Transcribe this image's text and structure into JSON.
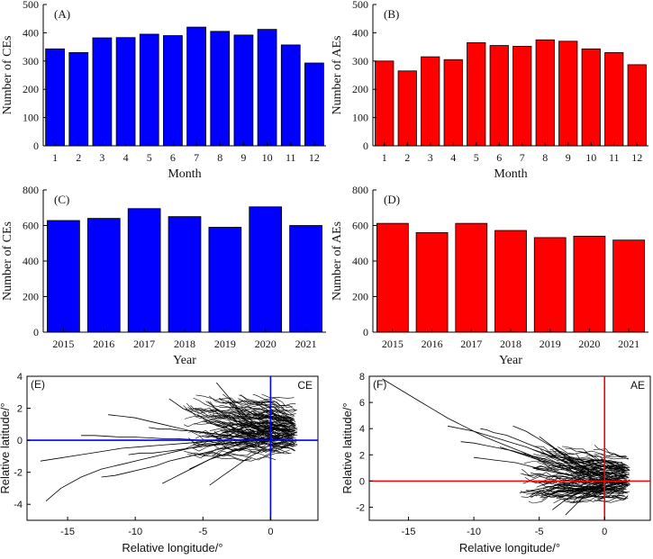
{
  "chart_data": [
    {
      "id": "A",
      "panel_label": "(A)",
      "type": "bar",
      "font": "serif",
      "categories": [
        "1",
        "2",
        "3",
        "4",
        "5",
        "6",
        "7",
        "8",
        "9",
        "10",
        "11",
        "12"
      ],
      "values": [
        343,
        330,
        382,
        383,
        395,
        390,
        420,
        405,
        392,
        412,
        357,
        293
      ],
      "xlabel": "Month",
      "ylabel": "Number of CEs",
      "ylim": [
        0,
        500
      ],
      "yticks": [
        0,
        100,
        200,
        300,
        400,
        500
      ],
      "color": "#0000ff"
    },
    {
      "id": "B",
      "panel_label": "(B)",
      "type": "bar",
      "font": "serif",
      "categories": [
        "1",
        "2",
        "3",
        "4",
        "5",
        "6",
        "7",
        "8",
        "9",
        "10",
        "11",
        "12"
      ],
      "values": [
        300,
        265,
        315,
        305,
        365,
        355,
        352,
        375,
        370,
        343,
        330,
        287
      ],
      "xlabel": "Month",
      "ylabel": "Number of AEs",
      "ylim": [
        0,
        500
      ],
      "yticks": [
        0,
        100,
        200,
        300,
        400,
        500
      ],
      "color": "#ff0000"
    },
    {
      "id": "C",
      "panel_label": "(C)",
      "type": "bar",
      "font": "serif",
      "categories": [
        "2015",
        "2016",
        "2017",
        "2018",
        "2019",
        "2020",
        "2021"
      ],
      "values": [
        628,
        640,
        695,
        650,
        590,
        705,
        600
      ],
      "xlabel": "Year",
      "ylabel": "Number of CEs",
      "ylim": [
        0,
        800
      ],
      "yticks": [
        0,
        200,
        400,
        600,
        800
      ],
      "color": "#0000ff"
    },
    {
      "id": "D",
      "panel_label": "(D)",
      "type": "bar",
      "font": "serif",
      "categories": [
        "2015",
        "2016",
        "2017",
        "2018",
        "2019",
        "2020",
        "2021"
      ],
      "values": [
        612,
        560,
        612,
        572,
        532,
        540,
        518
      ],
      "xlabel": "Year",
      "ylabel": "Number of AEs",
      "ylim": [
        0,
        800
      ],
      "yticks": [
        0,
        200,
        400,
        600,
        800
      ],
      "color": "#ff0000"
    },
    {
      "id": "E",
      "panel_label": "(E)",
      "type": "line",
      "font": "sans",
      "corner_label": "CE",
      "xlabel": "Relative longitude/°",
      "ylabel": "Relative latitude/°",
      "xlim": [
        -18,
        3.5
      ],
      "ylim": [
        -5,
        4
      ],
      "xticks": [
        -15,
        -10,
        -5,
        0
      ],
      "yticks": [
        -4,
        -2,
        0,
        2,
        4
      ],
      "reference_lines": {
        "x": 0,
        "y": 0,
        "color": "#0000ff"
      },
      "series_color": "#000000",
      "series": [
        {
          "x": [
            -16.6,
            -15.5,
            -14,
            -12.5,
            -11,
            -9.5,
            -8,
            -6.5,
            -5,
            -3.5,
            -2,
            -1,
            0
          ],
          "y": [
            -3.8,
            -3.0,
            -2.3,
            -1.8,
            -1.5,
            -1.2,
            -0.9,
            -0.6,
            -0.3,
            -0.2,
            -0.1,
            0,
            0
          ]
        },
        {
          "x": [
            -17,
            -15.5,
            -14,
            -12.5,
            -11,
            -9.5,
            -8,
            -6.5,
            -5,
            -3.5,
            -2,
            -0.5
          ],
          "y": [
            -1.3,
            -1.1,
            -0.9,
            -0.7,
            -0.5,
            -0.4,
            -0.3,
            -0.2,
            -0.1,
            0,
            0.05,
            0.1
          ]
        },
        {
          "x": [
            -12,
            -11,
            -10,
            -9,
            -8,
            -7,
            -6,
            -5,
            -4,
            -3,
            -2,
            -1,
            0
          ],
          "y": [
            1.6,
            1.5,
            1.4,
            1.2,
            1.0,
            0.8,
            0.6,
            0.5,
            0.4,
            0.3,
            0.2,
            0.1,
            0.1
          ]
        },
        {
          "x": [
            -12.5,
            -11.5,
            -10.5,
            -9.5,
            -8.5,
            -7.5,
            -6.5,
            -5.5,
            -4.5,
            -3.5,
            -2.5,
            -1.5
          ],
          "y": [
            -2.3,
            -2.2,
            -2.0,
            -1.8,
            -1.6,
            -1.3,
            -1.1,
            -0.9,
            -0.7,
            -0.5,
            -0.3,
            -0.2
          ]
        },
        {
          "x": [
            -14,
            -13,
            -12,
            -11,
            -10,
            -9,
            -8,
            -7,
            -6,
            -5,
            -4,
            -3,
            -2,
            -1
          ],
          "y": [
            0.3,
            0.3,
            0.25,
            0.2,
            0.2,
            0.15,
            0.1,
            0.1,
            0.05,
            0,
            0,
            0,
            0,
            0
          ]
        },
        {
          "x": [
            -4,
            -3.6,
            -3.2,
            -2.8,
            -2.4,
            -2,
            -1.6,
            -1.2,
            -0.8,
            -0.4,
            0,
            0.4
          ],
          "y": [
            3.6,
            3.2,
            2.8,
            2.4,
            2.0,
            1.7,
            1.4,
            1.0,
            0.7,
            0.5,
            0.3,
            0.2
          ]
        },
        {
          "x": [
            -7.5,
            -7,
            -6.5,
            -6,
            -5.5,
            -5,
            -4.5,
            -4,
            -3.5,
            -3,
            -2.5,
            -2,
            -1.5,
            -1,
            -0.5
          ],
          "y": [
            2.6,
            2.3,
            2.0,
            1.8,
            1.6,
            1.4,
            1.2,
            1.0,
            0.9,
            0.7,
            0.5,
            0.4,
            0.3,
            0.2,
            0.1
          ]
        },
        {
          "x": [
            -8,
            -7.3,
            -6.6,
            -5.9,
            -5.2,
            -4.5,
            -3.8,
            -3.1,
            -2.4,
            -1.7,
            -1,
            -0.3
          ],
          "y": [
            -2.7,
            -2.4,
            -2.1,
            -1.8,
            -1.5,
            -1.2,
            -1.0,
            -0.8,
            -0.6,
            -0.4,
            -0.3,
            -0.2
          ]
        },
        {
          "x": [
            -9,
            -8.2,
            -7.4,
            -6.6,
            -5.8,
            -5,
            -4.2,
            -3.4,
            -2.6,
            -1.8,
            -1,
            -0.2
          ],
          "y": [
            0.8,
            0.7,
            0.7,
            0.6,
            0.6,
            0.5,
            0.4,
            0.3,
            0.2,
            0.1,
            0.05,
            0
          ]
        },
        {
          "x": [
            -6,
            -5.5,
            -5,
            -4.5,
            -4,
            -3.5,
            -3,
            -2.5,
            -2,
            -1.5,
            -1,
            -0.5,
            0,
            0.5
          ],
          "y": [
            -1.8,
            -1.6,
            -1.4,
            -1.2,
            -1.0,
            -0.9,
            -0.7,
            -0.6,
            -0.4,
            -0.3,
            -0.2,
            -0.1,
            0,
            0
          ]
        },
        {
          "x": [
            -3,
            -2.7,
            -2.4,
            -2.1,
            -1.8,
            -1.5,
            -1.2,
            -0.9,
            -0.6,
            -0.3,
            0,
            0.3,
            0.6
          ],
          "y": [
            2.4,
            2.1,
            1.8,
            1.6,
            1.3,
            1.1,
            0.9,
            0.7,
            0.5,
            0.3,
            0.2,
            0.1,
            0
          ]
        },
        {
          "x": [
            -10.5,
            -9.6,
            -8.7,
            -7.8,
            -6.9,
            -6,
            -5.1,
            -4.2,
            -3.3,
            -2.4,
            -1.5,
            -0.6
          ],
          "y": [
            -0.9,
            -0.8,
            -0.8,
            -0.7,
            -0.6,
            -0.5,
            -0.4,
            -0.3,
            -0.2,
            -0.1,
            -0.05,
            0
          ]
        },
        {
          "x": [
            -5,
            -4.6,
            -4.2,
            -3.8,
            -3.4,
            -3,
            -2.6,
            -2.2,
            -1.8,
            -1.4,
            -1,
            -0.6,
            -0.2,
            0.2
          ],
          "y": [
            1.2,
            1.1,
            1.0,
            0.9,
            0.8,
            0.7,
            0.6,
            0.5,
            0.4,
            0.3,
            0.2,
            0.1,
            0.05,
            0
          ]
        },
        {
          "x": [
            -4.5,
            -4,
            -3.5,
            -3,
            -2.5,
            -2,
            -1.5,
            -1,
            -0.5,
            0,
            0.5,
            1
          ],
          "y": [
            -2.8,
            -2.5,
            -2.2,
            -1.9,
            -1.6,
            -1.3,
            -1.0,
            -0.8,
            -0.5,
            -0.3,
            -0.2,
            -0.1
          ]
        }
      ]
    },
    {
      "id": "F",
      "panel_label": "(F)",
      "type": "line",
      "font": "sans",
      "corner_label": "AE",
      "xlabel": "Relative longitude/°",
      "ylabel": "Relative latitude/°",
      "xlim": [
        -18,
        3.5
      ],
      "ylim": [
        -3,
        8
      ],
      "xticks": [
        -15,
        -10,
        -5,
        0
      ],
      "yticks": [
        -2,
        0,
        2,
        4,
        6,
        8
      ],
      "reference_lines": {
        "x": 0,
        "y": 0,
        "color": "#ff0000"
      },
      "series_color": "#000000",
      "series": [
        {
          "x": [
            -17,
            -16,
            -15,
            -14,
            -13,
            -12,
            -11,
            -10,
            -9,
            -8,
            -7,
            -6,
            -5,
            -4,
            -3,
            -2,
            -1
          ],
          "y": [
            7.8,
            7.2,
            6.6,
            6.0,
            5.4,
            4.8,
            4.3,
            3.8,
            3.3,
            2.9,
            2.5,
            2.1,
            1.7,
            1.4,
            1.1,
            0.8,
            0.5
          ]
        },
        {
          "x": [
            -12,
            -11,
            -10,
            -9,
            -8,
            -7,
            -6,
            -5,
            -4,
            -3,
            -2,
            -1,
            0
          ],
          "y": [
            4.2,
            4.0,
            3.8,
            3.5,
            3.2,
            2.9,
            2.6,
            2.2,
            1.9,
            1.5,
            1.1,
            0.7,
            0.4
          ]
        },
        {
          "x": [
            -9.5,
            -9,
            -8.5,
            -8,
            -7.5,
            -7,
            -6.5,
            -6,
            -5.5,
            -5,
            -4.5,
            -4,
            -3.5,
            -3,
            -2.5,
            -2,
            -1.5,
            -1
          ],
          "y": [
            4.0,
            3.9,
            3.7,
            3.6,
            3.5,
            3.3,
            3.1,
            2.9,
            2.7,
            2.5,
            2.3,
            2.0,
            1.7,
            1.4,
            1.1,
            0.8,
            0.5,
            0.3
          ]
        },
        {
          "x": [
            -7,
            -6.5,
            -6,
            -5.5,
            -5,
            -4.5,
            -4,
            -3.5,
            -3,
            -2.5,
            -2,
            -1.5,
            -1,
            -0.5
          ],
          "y": [
            4.2,
            4.0,
            3.8,
            3.5,
            3.2,
            2.9,
            2.6,
            2.2,
            1.9,
            1.6,
            1.3,
            1.0,
            0.7,
            0.5
          ]
        },
        {
          "x": [
            -5,
            -4.6,
            -4.2,
            -3.8,
            -3.4,
            -3,
            -2.6,
            -2.2,
            -1.8,
            -1.4,
            -1,
            -0.6,
            -0.2,
            0.2
          ],
          "y": [
            3.4,
            3.1,
            2.8,
            2.5,
            2.2,
            1.9,
            1.6,
            1.4,
            1.1,
            0.9,
            0.7,
            0.5,
            0.3,
            0.1
          ]
        },
        {
          "x": [
            -10,
            -9.2,
            -8.4,
            -7.6,
            -6.8,
            -6,
            -5.2,
            -4.4,
            -3.6,
            -2.8,
            -2,
            -1.2,
            -0.4
          ],
          "y": [
            1.8,
            1.7,
            1.6,
            1.5,
            1.4,
            1.2,
            1.0,
            0.9,
            0.7,
            0.5,
            0.4,
            0.3,
            0.1
          ]
        },
        {
          "x": [
            -8,
            -7.4,
            -6.8,
            -6.2,
            -5.6,
            -5,
            -4.4,
            -3.8,
            -3.2,
            -2.6,
            -2,
            -1.4,
            -0.8,
            -0.2,
            0.4
          ],
          "y": [
            2.6,
            2.4,
            2.2,
            2.0,
            1.8,
            1.6,
            1.4,
            1.2,
            1.0,
            0.8,
            0.6,
            0.5,
            0.3,
            0.2,
            0.1
          ]
        },
        {
          "x": [
            -6.5,
            -6,
            -5.5,
            -5,
            -4.5,
            -4,
            -3.5,
            -3,
            -2.5,
            -2,
            -1.5,
            -1,
            -0.5,
            0,
            0.5
          ],
          "y": [
            -0.9,
            -0.8,
            -0.7,
            -0.6,
            -0.5,
            -0.4,
            -0.3,
            -0.2,
            -0.1,
            0,
            0,
            0.1,
            0.1,
            0.1,
            0.1
          ]
        },
        {
          "x": [
            -4,
            -3.6,
            -3.2,
            -2.8,
            -2.4,
            -2,
            -1.6,
            -1.2,
            -0.8,
            -0.4,
            0,
            0.4,
            0.8,
            1.2
          ],
          "y": [
            -2.2,
            -1.9,
            -1.6,
            -1.3,
            -1.1,
            -0.9,
            -0.7,
            -0.5,
            -0.3,
            -0.2,
            -0.1,
            0,
            0.1,
            0.1
          ]
        },
        {
          "x": [
            -11,
            -10,
            -9,
            -8,
            -7,
            -6,
            -5,
            -4,
            -3,
            -2,
            -1,
            0
          ],
          "y": [
            3.0,
            2.9,
            2.7,
            2.5,
            2.3,
            2.0,
            1.8,
            1.5,
            1.2,
            0.9,
            0.6,
            0.3
          ]
        },
        {
          "x": [
            -3,
            -2.7,
            -2.4,
            -2.1,
            -1.8,
            -1.5,
            -1.2,
            -0.9,
            -0.6,
            -0.3,
            0,
            0.3,
            0.6,
            0.9
          ],
          "y": [
            -2.6,
            -2.3,
            -2.0,
            -1.7,
            -1.4,
            -1.1,
            -0.9,
            -0.7,
            -0.5,
            -0.3,
            -0.2,
            -0.1,
            0,
            0
          ]
        },
        {
          "x": [
            -5.5,
            -5,
            -4.5,
            -4,
            -3.5,
            -3,
            -2.5,
            -2,
            -1.5,
            -1,
            -0.5,
            0,
            0.5,
            1
          ],
          "y": [
            1.0,
            0.9,
            0.8,
            0.7,
            0.6,
            0.5,
            0.4,
            0.3,
            0.2,
            0.1,
            0.1,
            0,
            0,
            0
          ]
        }
      ]
    }
  ]
}
